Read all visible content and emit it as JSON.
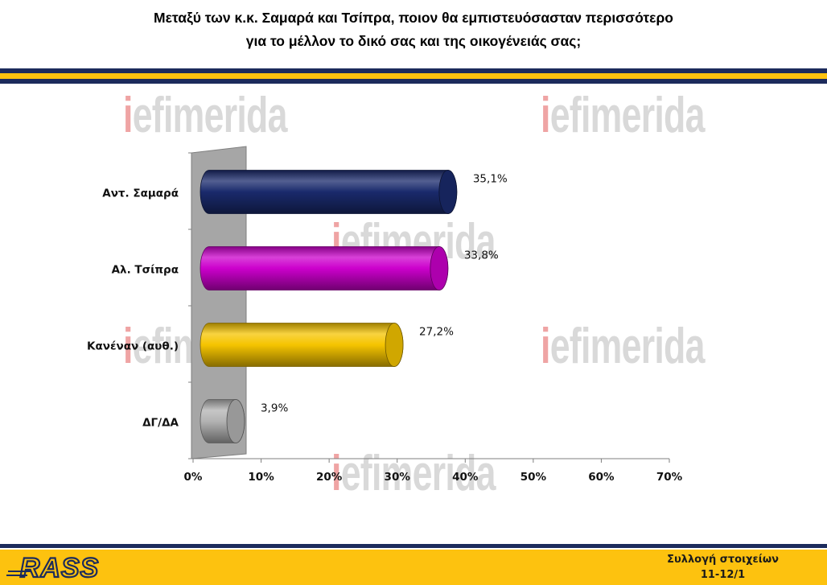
{
  "header": {
    "title_line1": "Μεταξύ των κ.κ. Σαμαρά και Τσίπρα, ποιον θα εμπιστευόσασταν περισσότερο",
    "title_line2": "για το μέλλον το δικό σας και της οικογένειάς σας;"
  },
  "watermark": {
    "prefix": "i",
    "rest": "efimerida"
  },
  "colors": {
    "navy": "#1c2b5c",
    "gold": "#fdc20f",
    "wall": "#a6a6a6"
  },
  "chart_data": {
    "type": "bar",
    "orientation": "horizontal",
    "categories": [
      "Αντ. Σαμαρά",
      "Αλ. Τσίπρα",
      "Κανέναν (αυθ.)",
      "ΔΓ/ΔΑ"
    ],
    "values": [
      35.1,
      33.8,
      27.2,
      3.9
    ],
    "value_labels": [
      "35,1%",
      "33,8%",
      "27,2%",
      "3,9%"
    ],
    "bar_colors": [
      "#1a2a6c",
      "#cc00cc",
      "#f5c400",
      "#b3b3b3"
    ],
    "xlim": [
      0,
      70
    ],
    "xticks": [
      0,
      10,
      20,
      30,
      40,
      50,
      60,
      70
    ],
    "xtick_labels": [
      "0%",
      "10%",
      "20%",
      "30%",
      "40%",
      "50%",
      "60%",
      "70%"
    ],
    "title": "",
    "xlabel": "",
    "ylabel": "",
    "grid": false,
    "legend": "none"
  },
  "footer": {
    "logo_text": "RASS",
    "line1": "Συλλογή στοιχείων",
    "line2": "11-12/1"
  }
}
